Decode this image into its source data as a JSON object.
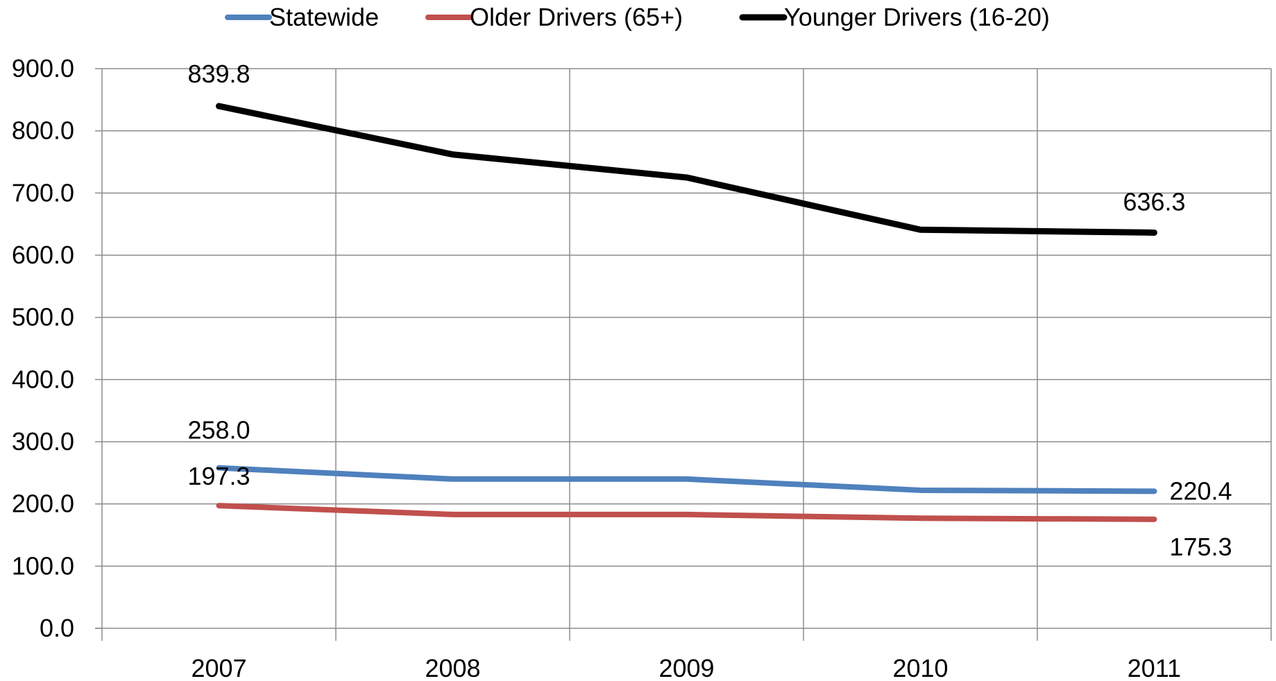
{
  "chart_data": {
    "type": "line",
    "title": "",
    "xlabel": "",
    "ylabel": "",
    "categories": [
      "2007",
      "2008",
      "2009",
      "2010",
      "2011"
    ],
    "ylim": [
      0,
      900
    ],
    "yticks": [
      "0.0",
      "100.0",
      "200.0",
      "300.0",
      "400.0",
      "500.0",
      "600.0",
      "700.0",
      "800.0",
      "900.0"
    ],
    "grid": true,
    "legend_position": "top",
    "series": [
      {
        "name": "Statewide",
        "color": "#4f81bd",
        "values": [
          258.0,
          240.0,
          240.0,
          222.0,
          220.4
        ],
        "labels": {
          "first": "258.0",
          "last": "220.4"
        }
      },
      {
        "name": "Older Drivers (65+)",
        "color": "#c0504d",
        "values": [
          197.3,
          183.0,
          183.0,
          177.0,
          175.3
        ],
        "labels": {
          "first": "197.3",
          "last": "175.3"
        }
      },
      {
        "name": "Younger Drivers (16-20)",
        "color": "#000000",
        "values": [
          839.8,
          762.0,
          725.0,
          641.0,
          636.3
        ],
        "labels": {
          "first": "839.8",
          "last": "636.3"
        }
      }
    ]
  }
}
